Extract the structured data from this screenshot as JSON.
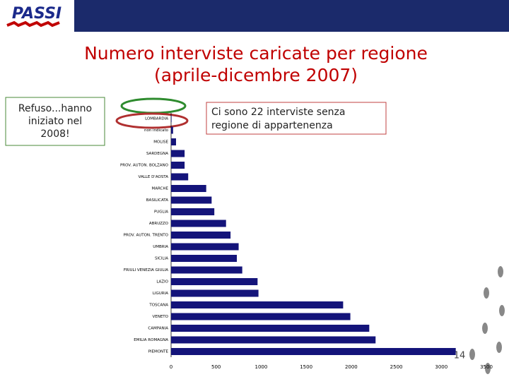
{
  "header": {
    "logo": "PASSI"
  },
  "chart_data": {
    "type": "hbar",
    "orientation": "horizontal",
    "title": "Numero interviste caricate per regione",
    "subtitle": "(aprile-dicembre 2007)",
    "categories": [
      "LOMBARDIA",
      "non indicato",
      "MOLISE",
      "SARDEGNA",
      "PROV. AUTON. BOLZANO",
      "VALLE D'AOSTA",
      "MARCHE",
      "BASILICATA",
      "PUGLIA",
      "ABRUZZO",
      "PROV. AUTON. TRENTO",
      "UMBRIA",
      "SICILIA",
      "FRIULI VENEZIA GIULIA",
      "LAZIO",
      "LIGURIA",
      "TOSCANA",
      "VENETO",
      "CAMPANIA",
      "EMILIA ROMAGNA",
      "PIEMONTE"
    ],
    "values": [
      5,
      22,
      55,
      150,
      150,
      190,
      390,
      450,
      480,
      610,
      660,
      750,
      730,
      790,
      960,
      970,
      1910,
      1990,
      2200,
      2270,
      3160
    ],
    "color": "#14147a",
    "xlim": [
      0,
      3500
    ],
    "xticks": [
      0,
      500,
      1000,
      1500,
      2000,
      2500,
      3000,
      3500
    ]
  },
  "callouts": {
    "left": [
      "Refuso...hanno",
      "iniziato nel",
      "2008!"
    ],
    "right": [
      "Ci sono 22 interviste senza",
      "regione di appartenenza"
    ]
  },
  "footer": {
    "page_number": "14"
  }
}
